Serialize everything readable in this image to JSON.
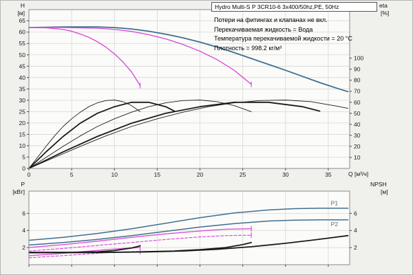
{
  "header": {
    "title": "Hydro Multi-S P 3CR10-6 3x400/50hz,PE, 50Hz"
  },
  "annotations": [
    "Потери на фитингах и клапанах не вкл.",
    "Перекачиваемая жидкость = Вода",
    "Температура перекачиваемой жидкости = 20 °C",
    "Плотность = 998.2 кг/м³"
  ],
  "axis_labels": {
    "h": "H",
    "h_unit": "[м]",
    "eta": "eta",
    "eta_unit": "[%]",
    "q": "Q [м³/ч]",
    "p": "P",
    "p_unit": "[кВт]",
    "npsh": "NPSH",
    "npsh_unit": "[м]"
  },
  "colors": {
    "blue": "#3f6e8e",
    "magenta": "#d94fd9",
    "black": "#1a1a1a",
    "grid": "#d6d6d3",
    "axis": "#8a8a8a",
    "plot_bg": "#fbfbf9",
    "bg": "#f0f0ed"
  },
  "chart_data": [
    {
      "name": "head-flow",
      "type": "line",
      "title": "Hydro Multi-S P 3CR10-6 3x400/50hz,PE, 50Hz",
      "xlabel": "Q [м³/ч]",
      "ylabel_left": "H [м]",
      "ylabel_right": "eta [%]",
      "xlim": [
        0,
        37.5
      ],
      "ylim_left": [
        0,
        69.9
      ],
      "ylim_right": [
        0,
        144
      ],
      "xticks": [
        0,
        5,
        10,
        15,
        20,
        25,
        30,
        35
      ],
      "yticks_left": [
        0,
        5,
        10,
        15,
        20,
        25,
        30,
        35,
        40,
        45,
        50,
        55,
        60,
        65
      ],
      "yticks_right": [
        10,
        20,
        30,
        40,
        50,
        60,
        70,
        80,
        90,
        100
      ],
      "grid": true,
      "legend": "none",
      "series": [
        {
          "name": "head-3-pumps",
          "color": "blue",
          "width": 1.8,
          "axis": "left",
          "points": [
            [
              0,
              62
            ],
            [
              4,
              62.3
            ],
            [
              8,
              62.3
            ],
            [
              10,
              62
            ],
            [
              12,
              61.4
            ],
            [
              14,
              60.4
            ],
            [
              16,
              59.1
            ],
            [
              18,
              57.5
            ],
            [
              20,
              55.6
            ],
            [
              22,
              53.4
            ],
            [
              24,
              51
            ],
            [
              26,
              48.4
            ],
            [
              28,
              45.8
            ],
            [
              30,
              43.2
            ],
            [
              32,
              40.5
            ],
            [
              34,
              37.8
            ],
            [
              36,
              35.3
            ],
            [
              37.3,
              33.8
            ]
          ]
        },
        {
          "name": "head-1-pump",
          "color": "magenta",
          "width": 1.4,
          "axis": "left",
          "end_tick": true,
          "points": [
            [
              0,
              62
            ],
            [
              2,
              61.9
            ],
            [
              4,
              61.2
            ],
            [
              5,
              60.4
            ],
            [
              6,
              59.2
            ],
            [
              7,
              57.7
            ],
            [
              8,
              55.8
            ],
            [
              9,
              53.4
            ],
            [
              10,
              50.4
            ],
            [
              11,
              46.8
            ],
            [
              12,
              42.5
            ],
            [
              13,
              36.5
            ]
          ]
        },
        {
          "name": "head-2-pumps",
          "color": "magenta",
          "width": 1.4,
          "axis": "left",
          "end_tick": true,
          "points": [
            [
              0,
              62
            ],
            [
              4,
              62
            ],
            [
              8,
              61.7
            ],
            [
              10,
              61.2
            ],
            [
              12,
              60.3
            ],
            [
              14,
              58.9
            ],
            [
              16,
              57
            ],
            [
              18,
              54.6
            ],
            [
              20,
              51.6
            ],
            [
              22,
              47.9
            ],
            [
              24,
              43.2
            ],
            [
              26,
              37
            ]
          ]
        },
        {
          "name": "eta-1-pump",
          "color": "black",
          "width": 0.9,
          "axis": "right",
          "points": [
            [
              0,
              0
            ],
            [
              1,
              10
            ],
            [
              2,
              20
            ],
            [
              3,
              29.5
            ],
            [
              4,
              38
            ],
            [
              5,
              45
            ],
            [
              6,
              51
            ],
            [
              7,
              56
            ],
            [
              8,
              59.5
            ],
            [
              9,
              61.5
            ],
            [
              10,
              62
            ],
            [
              11,
              60.5
            ],
            [
              12,
              57
            ],
            [
              13,
              51.5
            ]
          ]
        },
        {
          "name": "eta-2-pumps",
          "color": "black",
          "width": 0.9,
          "axis": "right",
          "points": [
            [
              0,
              0
            ],
            [
              2,
              10
            ],
            [
              4,
              20
            ],
            [
              6,
              29.5
            ],
            [
              8,
              38
            ],
            [
              10,
              45
            ],
            [
              12,
              51
            ],
            [
              14,
              56
            ],
            [
              16,
              59.5
            ],
            [
              18,
              61.5
            ],
            [
              20,
              62
            ],
            [
              22,
              60.5
            ],
            [
              24,
              57
            ],
            [
              26,
              51.5
            ]
          ]
        },
        {
          "name": "eta-3-pumps",
          "color": "black",
          "width": 0.9,
          "axis": "right",
          "points": [
            [
              0,
              0
            ],
            [
              3,
              10
            ],
            [
              6,
              20
            ],
            [
              9,
              29.5
            ],
            [
              12,
              38
            ],
            [
              15,
              45
            ],
            [
              18,
              51
            ],
            [
              21,
              56
            ],
            [
              24,
              59.5
            ],
            [
              27,
              61.5
            ],
            [
              30,
              62
            ],
            [
              33,
              60.5
            ],
            [
              36,
              56.5
            ],
            [
              37.3,
              54.5
            ]
          ]
        },
        {
          "name": "eta-system-1",
          "color": "black",
          "width": 1.8,
          "axis": "right",
          "points": [
            [
              0,
              0
            ],
            [
              2,
              15
            ],
            [
              4,
              29
            ],
            [
              6,
              41
            ],
            [
              8,
              50
            ],
            [
              10,
              56
            ],
            [
              12,
              60
            ],
            [
              14,
              60
            ],
            [
              16,
              56
            ],
            [
              17,
              52
            ]
          ]
        },
        {
          "name": "eta-system-2",
          "color": "black",
          "width": 1.8,
          "axis": "right",
          "points": [
            [
              0,
              0
            ],
            [
              4,
              15
            ],
            [
              8,
              29
            ],
            [
              12,
              41
            ],
            [
              16,
              50
            ],
            [
              20,
              56
            ],
            [
              24,
              60
            ],
            [
              28,
              60
            ],
            [
              32,
              56
            ],
            [
              34,
              52
            ]
          ]
        }
      ]
    },
    {
      "name": "power-npsh",
      "type": "line",
      "title": "",
      "xlabel": "",
      "ylabel_left": "P [кВт]",
      "ylabel_right": "NPSH [м]",
      "xlim": [
        0,
        37.5
      ],
      "ylim_left": [
        0,
        8.6
      ],
      "ylim_right": [
        0,
        8.6
      ],
      "xticks": [
        0,
        5,
        10,
        15,
        20,
        25,
        30,
        35
      ],
      "yticks_left": [
        2,
        4,
        6
      ],
      "yticks_right": [
        2,
        4,
        6
      ],
      "grid": true,
      "legend": "none",
      "series": [
        {
          "name": "p1-3-pumps",
          "color": "blue",
          "width": 1.5,
          "axis": "left",
          "points": [
            [
              0,
              2.85
            ],
            [
              4,
              3.2
            ],
            [
              8,
              3.65
            ],
            [
              12,
              4.2
            ],
            [
              16,
              4.85
            ],
            [
              20,
              5.5
            ],
            [
              24,
              6.05
            ],
            [
              28,
              6.4
            ],
            [
              31,
              6.55
            ],
            [
              34,
              6.6
            ],
            [
              37.3,
              6.6
            ]
          ]
        },
        {
          "name": "p2-3-pumps",
          "color": "blue",
          "width": 1.5,
          "axis": "left",
          "points": [
            [
              0,
              2.3
            ],
            [
              4,
              2.6
            ],
            [
              8,
              2.95
            ],
            [
              12,
              3.4
            ],
            [
              16,
              3.9
            ],
            [
              20,
              4.4
            ],
            [
              24,
              4.8
            ],
            [
              28,
              5.1
            ],
            [
              31,
              5.2
            ],
            [
              34,
              5.25
            ],
            [
              37.3,
              5.25
            ]
          ]
        },
        {
          "name": "p1-2-pumps",
          "color": "magenta",
          "width": 1.4,
          "axis": "left",
          "end_tick": true,
          "points": [
            [
              0,
              2.0
            ],
            [
              4,
              2.35
            ],
            [
              8,
              2.75
            ],
            [
              12,
              3.2
            ],
            [
              16,
              3.6
            ],
            [
              20,
              3.95
            ],
            [
              23,
              4.15
            ],
            [
              26,
              4.2
            ]
          ]
        },
        {
          "name": "p2-2-pumps",
          "color": "magenta",
          "width": 1.2,
          "dash": true,
          "axis": "left",
          "end_tick": true,
          "points": [
            [
              0,
              1.6
            ],
            [
              4,
              1.9
            ],
            [
              8,
              2.25
            ],
            [
              12,
              2.6
            ],
            [
              16,
              2.95
            ],
            [
              20,
              3.25
            ],
            [
              23,
              3.4
            ],
            [
              26,
              3.45
            ]
          ]
        },
        {
          "name": "p1-1-pump",
          "color": "magenta",
          "width": 1.4,
          "axis": "left",
          "end_tick": true,
          "points": [
            [
              0,
              1.05
            ],
            [
              3,
              1.25
            ],
            [
              6,
              1.5
            ],
            [
              9,
              1.75
            ],
            [
              11,
              1.9
            ],
            [
              13,
              2.0
            ]
          ]
        },
        {
          "name": "p2-1-pump",
          "color": "magenta",
          "width": 1.2,
          "dash": true,
          "axis": "left",
          "end_tick": true,
          "points": [
            [
              0,
              0.8
            ],
            [
              3,
              1.0
            ],
            [
              6,
              1.2
            ],
            [
              9,
              1.4
            ],
            [
              11,
              1.5
            ],
            [
              13,
              1.55
            ]
          ]
        },
        {
          "name": "npsh-1-pump",
          "color": "black",
          "width": 1.8,
          "axis": "right",
          "points": [
            [
              0,
              1.45
            ],
            [
              5,
              1.45
            ],
            [
              8,
              1.5
            ],
            [
              10,
              1.65
            ],
            [
              12,
              1.95
            ],
            [
              13,
              2.2
            ]
          ]
        },
        {
          "name": "npsh-2-pumps",
          "color": "black",
          "width": 1.8,
          "axis": "right",
          "points": [
            [
              13,
              1.5
            ],
            [
              17,
              1.6
            ],
            [
              20,
              1.75
            ],
            [
              23,
              2.0
            ],
            [
              25,
              2.35
            ],
            [
              26,
              2.6
            ]
          ]
        },
        {
          "name": "npsh-3-pumps",
          "color": "black",
          "width": 1.8,
          "axis": "right",
          "points": [
            [
              0,
              1.4
            ],
            [
              8,
              1.42
            ],
            [
              14,
              1.5
            ],
            [
              18,
              1.6
            ],
            [
              22,
              1.8
            ],
            [
              26,
              2.1
            ],
            [
              30,
              2.5
            ],
            [
              33,
              2.85
            ],
            [
              35,
              3.1
            ],
            [
              37.3,
              3.4
            ]
          ]
        }
      ],
      "series_labels": [
        {
          "text": "P1",
          "q": 35.3,
          "v": 7.2,
          "color": "blue"
        },
        {
          "text": "P2",
          "q": 35.3,
          "v": 4.75,
          "color": "blue"
        }
      ]
    }
  ]
}
